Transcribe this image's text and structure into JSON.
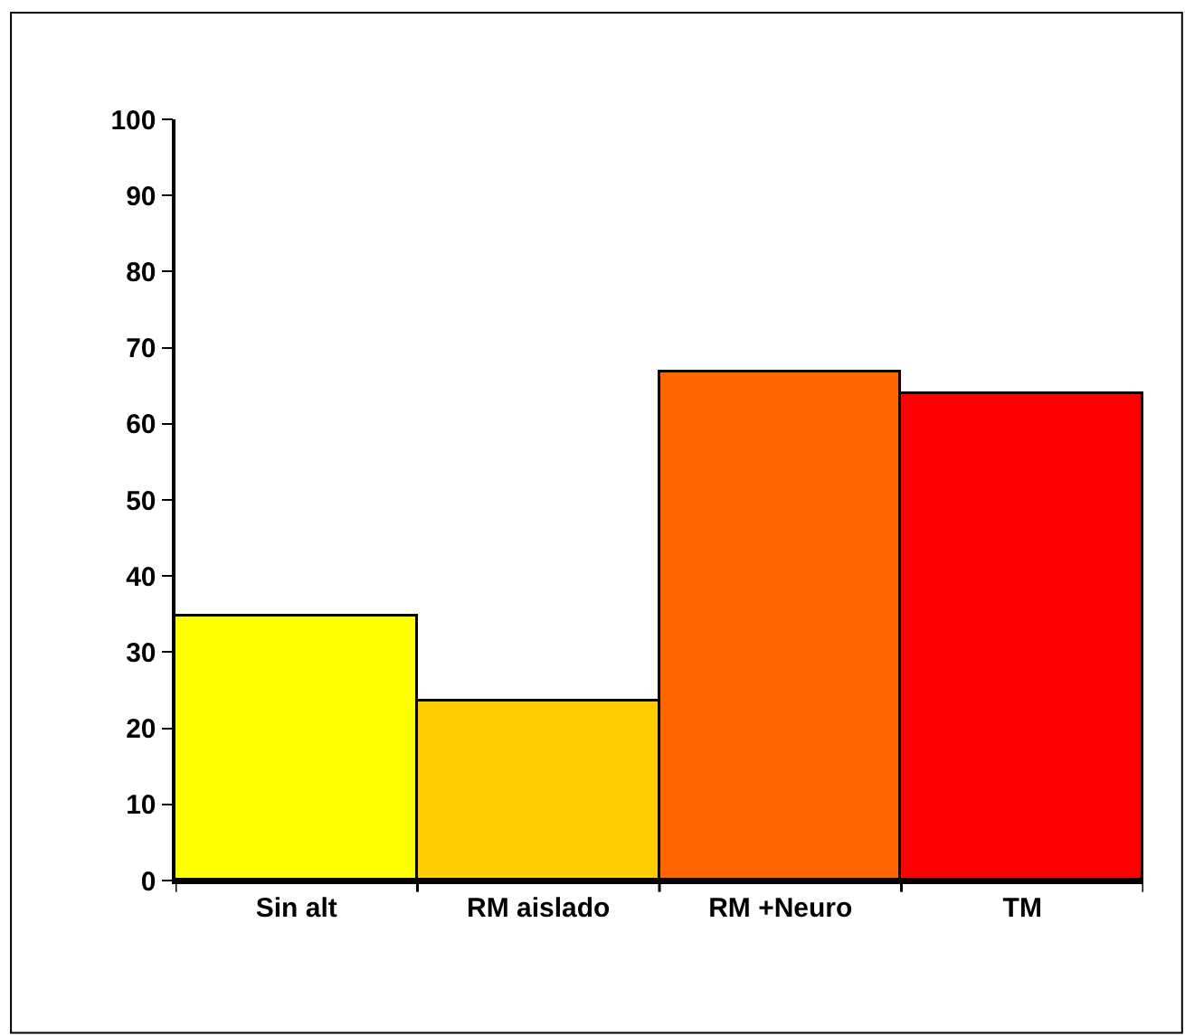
{
  "chart_data": {
    "type": "bar",
    "categories": [
      "Sin alt",
      "RM aislado",
      "RM +Neuro",
      "TM"
    ],
    "values": [
      34.7,
      23.5,
      66.7,
      63.9
    ],
    "colors": [
      "#ffff00",
      "#ffcc00",
      "#ff6600",
      "#ff0000"
    ],
    "ylim": [
      0,
      100
    ],
    "yticks": [
      0,
      10,
      20,
      30,
      40,
      50,
      60,
      70,
      80,
      90,
      100
    ],
    "legend": false
  }
}
